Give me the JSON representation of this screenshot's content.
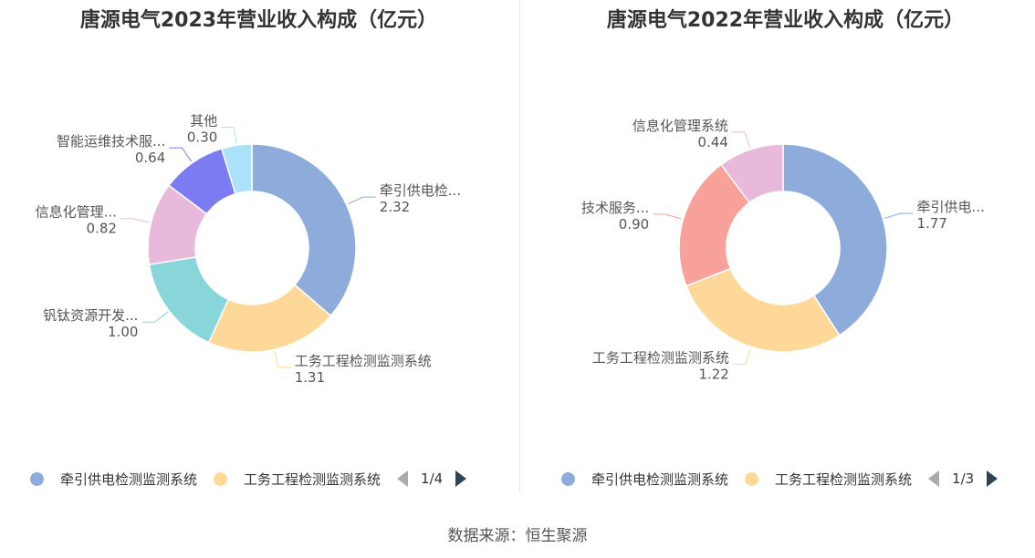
{
  "source": "数据来源：恒生聚源",
  "colors": [
    "#8eacdb",
    "#fdd899",
    "#88d6da",
    "#e8b9da",
    "#7b7bf2",
    "#abe1f9",
    "#f8a19a"
  ],
  "chart_data": [
    {
      "type": "pie",
      "title": "唐源电气2023年营业收入构成（亿元）",
      "slices": [
        {
          "name": "牵引供电检测监测系统",
          "label": "牵引供电检...",
          "value": 2.32,
          "value_label": "2.32",
          "color": "#8eacdb"
        },
        {
          "name": "工务工程检测监测系统",
          "label": "工务工程检测监测系统",
          "value": 1.31,
          "value_label": "1.31",
          "color": "#fdd899"
        },
        {
          "name": "钒钛资源开发...",
          "label": "钒钛资源开发...",
          "value": 1.0,
          "value_label": "1.00",
          "color": "#88d6da"
        },
        {
          "name": "信息化管理...",
          "label": "信息化管理...",
          "value": 0.82,
          "value_label": "0.82",
          "color": "#e8b9da"
        },
        {
          "name": "智能运维技术服...",
          "label": "智能运维技术服...",
          "value": 0.64,
          "value_label": "0.64",
          "color": "#7b7bf2"
        },
        {
          "name": "其他",
          "label": "其他",
          "value": 0.3,
          "value_label": "0.30",
          "color": "#abe1f9"
        }
      ],
      "legend": {
        "items": [
          {
            "name": "牵引供电检测监测系统",
            "color": "#8eacdb"
          },
          {
            "name": "工务工程检测监测系统",
            "color": "#fdd899"
          }
        ],
        "page": "1/4",
        "placement": "bottom"
      }
    },
    {
      "type": "pie",
      "title": "唐源电气2022年营业收入构成（亿元）",
      "slices": [
        {
          "name": "牵引供电...",
          "label": "牵引供电...",
          "value": 1.77,
          "value_label": "1.77",
          "color": "#8eacdb"
        },
        {
          "name": "工务工程检测监测系统",
          "label": "工务工程检测监测系统",
          "value": 1.22,
          "value_label": "1.22",
          "color": "#fdd899"
        },
        {
          "name": "技术服务...",
          "label": "技术服务...",
          "value": 0.9,
          "value_label": "0.90",
          "color": "#f8a19a"
        },
        {
          "name": "信息化管理系统",
          "label": "信息化管理系统",
          "value": 0.44,
          "value_label": "0.44",
          "color": "#e8b9da"
        }
      ],
      "legend": {
        "items": [
          {
            "name": "牵引供电检测监测系统",
            "color": "#8eacdb"
          },
          {
            "name": "工务工程检测监测系统",
            "color": "#fdd899"
          }
        ],
        "page": "1/3",
        "placement": "bottom"
      }
    }
  ]
}
